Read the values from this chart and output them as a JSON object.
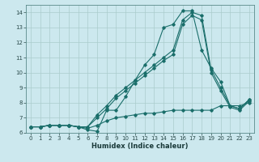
{
  "title": "",
  "xlabel": "Humidex (Indice chaleur)",
  "bg_color": "#cce8ee",
  "grid_color": "#aacccc",
  "line_color": "#1a6e6a",
  "xlim": [
    -0.5,
    23.5
  ],
  "ylim": [
    6,
    14.5
  ],
  "xticks": [
    0,
    1,
    2,
    3,
    4,
    5,
    6,
    7,
    8,
    9,
    10,
    11,
    12,
    13,
    14,
    15,
    16,
    17,
    18,
    19,
    20,
    21,
    22,
    23
  ],
  "yticks": [
    6,
    7,
    8,
    9,
    10,
    11,
    12,
    13,
    14
  ],
  "lines": [
    {
      "x": [
        0,
        1,
        2,
        3,
        4,
        5,
        6,
        7,
        8,
        9,
        10,
        11,
        12,
        13,
        14,
        15,
        16,
        17,
        18,
        19,
        20,
        21,
        22,
        23
      ],
      "y": [
        6.4,
        6.4,
        6.5,
        6.5,
        6.5,
        6.4,
        6.2,
        6.1,
        7.5,
        7.5,
        8.4,
        9.5,
        10.5,
        11.2,
        13.0,
        13.2,
        14.1,
        14.1,
        11.5,
        10.3,
        9.4,
        7.8,
        7.6,
        8.2
      ]
    },
    {
      "x": [
        0,
        1,
        2,
        3,
        4,
        5,
        6,
        7,
        8,
        9,
        10,
        11,
        12,
        13,
        14,
        15,
        16,
        17,
        18,
        19,
        20,
        21,
        22,
        23
      ],
      "y": [
        6.4,
        6.4,
        6.5,
        6.5,
        6.5,
        6.4,
        6.4,
        7.2,
        7.8,
        8.5,
        9.0,
        9.5,
        10.0,
        10.5,
        11.0,
        11.5,
        13.5,
        14.0,
        13.8,
        10.2,
        9.0,
        7.8,
        7.6,
        8.2
      ]
    },
    {
      "x": [
        0,
        1,
        2,
        3,
        4,
        5,
        6,
        7,
        8,
        9,
        10,
        11,
        12,
        13,
        14,
        15,
        16,
        17,
        18,
        19,
        20,
        21,
        22,
        23
      ],
      "y": [
        6.4,
        6.4,
        6.5,
        6.5,
        6.5,
        6.4,
        6.4,
        7.0,
        7.6,
        8.3,
        8.8,
        9.3,
        9.8,
        10.3,
        10.8,
        11.2,
        13.2,
        13.8,
        13.5,
        10.0,
        8.8,
        7.7,
        7.5,
        8.1
      ]
    },
    {
      "x": [
        0,
        1,
        2,
        3,
        4,
        5,
        6,
        7,
        8,
        9,
        10,
        11,
        12,
        13,
        14,
        15,
        16,
        17,
        18,
        19,
        20,
        21,
        22,
        23
      ],
      "y": [
        6.4,
        6.4,
        6.5,
        6.5,
        6.5,
        6.4,
        6.3,
        6.5,
        6.8,
        7.0,
        7.1,
        7.2,
        7.3,
        7.3,
        7.4,
        7.5,
        7.5,
        7.5,
        7.5,
        7.5,
        7.8,
        7.8,
        7.8,
        8.0
      ]
    }
  ]
}
